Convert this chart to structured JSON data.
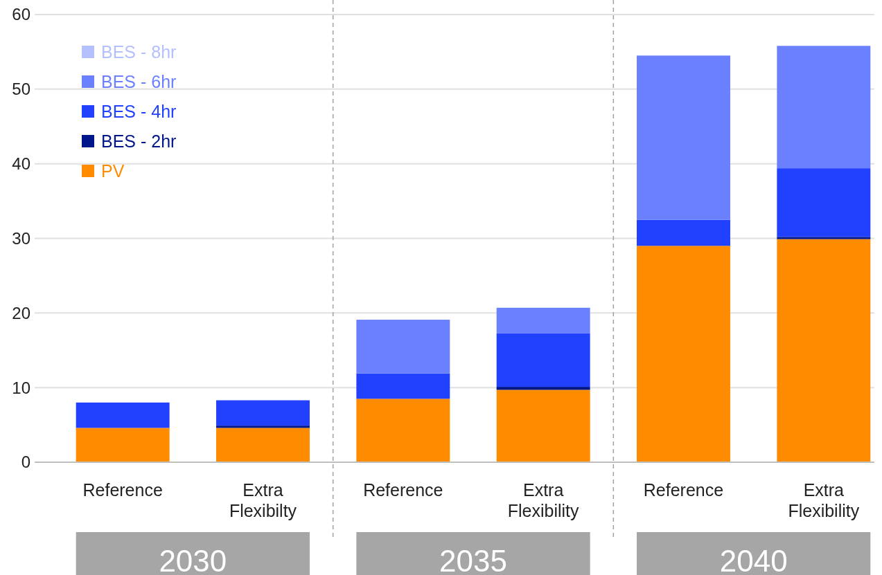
{
  "chart_data": {
    "type": "bar",
    "stacked": true,
    "categories": [
      "Reference",
      "Extra Flexibilty",
      "Reference",
      "Extra Flexibility",
      "Reference",
      "Extra Flexibility"
    ],
    "series": [
      {
        "name": "PV",
        "color": "#ff8c00",
        "values": [
          4.6,
          4.6,
          8.5,
          9.7,
          29.0,
          29.9
        ]
      },
      {
        "name": "BES - 2hr",
        "color": "#001689",
        "values": [
          0,
          0.3,
          0,
          0.4,
          0,
          0.3
        ]
      },
      {
        "name": "BES - 4hr",
        "color": "#2241ff",
        "values": [
          3.4,
          3.4,
          3.4,
          7.2,
          3.5,
          9.2
        ]
      },
      {
        "name": "BES - 6hr",
        "color": "#6b80ff",
        "values": [
          0,
          0,
          7.2,
          3.4,
          22.0,
          16.4
        ]
      },
      {
        "name": "BES - 8hr",
        "color": "#b4bffe",
        "values": [
          0,
          0,
          0,
          0,
          0,
          0
        ]
      }
    ],
    "ylim": [
      0,
      60
    ],
    "yticks": [
      0,
      10,
      20,
      30,
      40,
      50,
      60
    ],
    "grid": "y",
    "legend": "top left",
    "annotations": [
      "2030",
      "2035",
      "2040"
    ]
  }
}
